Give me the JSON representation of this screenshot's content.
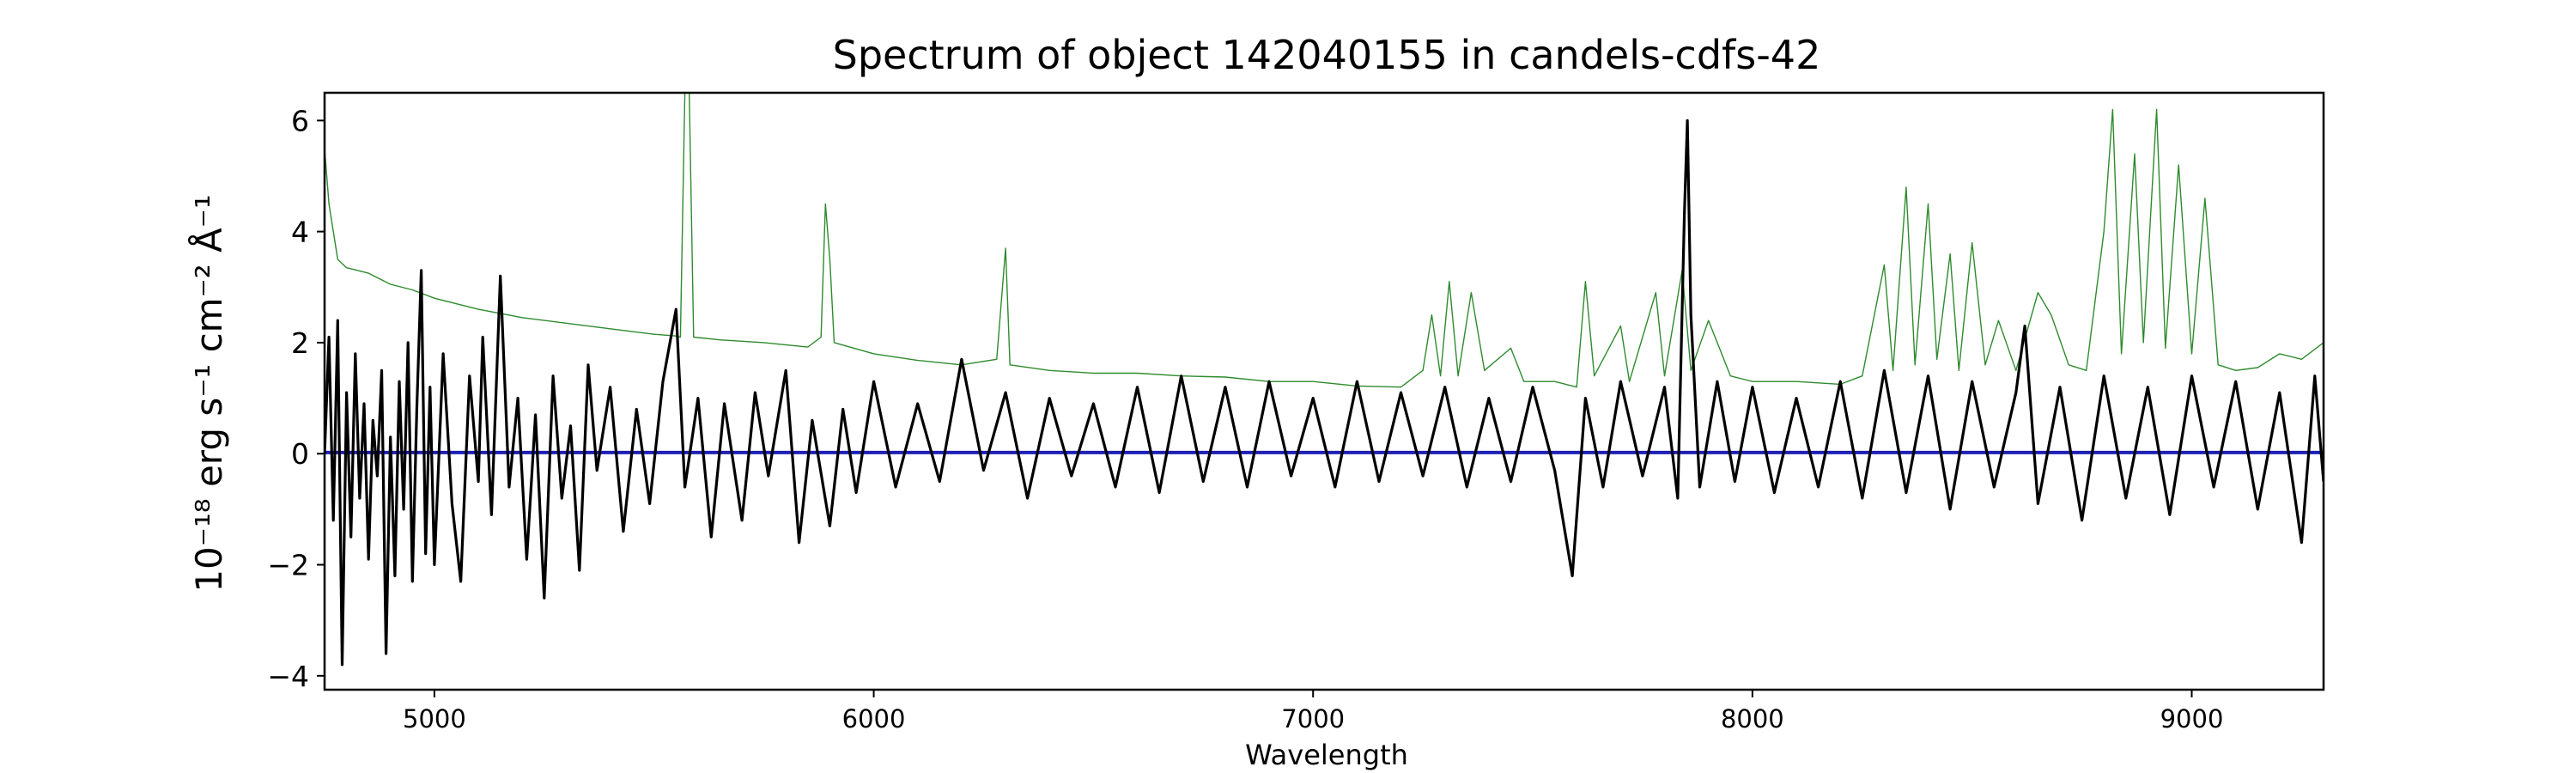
{
  "chart_data": {
    "type": "line",
    "title": "Spectrum of object 142040155 in candels-cdfs-42",
    "xlabel": "Wavelength",
    "ylabel": "10⁻¹⁸ erg s⁻¹ cm⁻² Å⁻¹",
    "xlim": [
      4750,
      9300
    ],
    "ylim": [
      -4.25,
      6.5
    ],
    "xticks": [
      5000,
      6000,
      7000,
      8000,
      9000
    ],
    "yticks": [
      -4,
      -2,
      0,
      2,
      4,
      6
    ],
    "grid": false,
    "series": [
      {
        "role": "flux",
        "color": "#000000",
        "points": [
          [
            4750,
            0.0
          ],
          [
            4760,
            2.1
          ],
          [
            4770,
            -1.2
          ],
          [
            4780,
            2.4
          ],
          [
            4790,
            -3.8
          ],
          [
            4800,
            1.1
          ],
          [
            4810,
            -1.5
          ],
          [
            4820,
            1.8
          ],
          [
            4830,
            -0.8
          ],
          [
            4840,
            0.9
          ],
          [
            4850,
            -1.9
          ],
          [
            4860,
            0.6
          ],
          [
            4870,
            -0.4
          ],
          [
            4880,
            1.5
          ],
          [
            4890,
            -3.6
          ],
          [
            4900,
            0.3
          ],
          [
            4910,
            -2.2
          ],
          [
            4920,
            1.3
          ],
          [
            4930,
            -1.0
          ],
          [
            4940,
            2.0
          ],
          [
            4950,
            -2.3
          ],
          [
            4960,
            0.8
          ],
          [
            4970,
            3.3
          ],
          [
            4980,
            -1.8
          ],
          [
            4990,
            1.2
          ],
          [
            5000,
            -2.0
          ],
          [
            5020,
            1.8
          ],
          [
            5040,
            -0.9
          ],
          [
            5060,
            -2.3
          ],
          [
            5080,
            1.4
          ],
          [
            5100,
            -0.5
          ],
          [
            5110,
            2.1
          ],
          [
            5130,
            -1.1
          ],
          [
            5150,
            3.2
          ],
          [
            5170,
            -0.6
          ],
          [
            5190,
            1.0
          ],
          [
            5210,
            -1.9
          ],
          [
            5230,
            0.7
          ],
          [
            5250,
            -2.6
          ],
          [
            5270,
            1.4
          ],
          [
            5290,
            -0.8
          ],
          [
            5310,
            0.5
          ],
          [
            5330,
            -2.1
          ],
          [
            5350,
            1.6
          ],
          [
            5370,
            -0.3
          ],
          [
            5400,
            1.2
          ],
          [
            5430,
            -1.4
          ],
          [
            5460,
            0.8
          ],
          [
            5490,
            -0.9
          ],
          [
            5520,
            1.3
          ],
          [
            5550,
            2.6
          ],
          [
            5570,
            -0.6
          ],
          [
            5600,
            1.0
          ],
          [
            5630,
            -1.5
          ],
          [
            5660,
            0.9
          ],
          [
            5700,
            -1.2
          ],
          [
            5730,
            1.1
          ],
          [
            5760,
            -0.4
          ],
          [
            5800,
            1.5
          ],
          [
            5830,
            -1.6
          ],
          [
            5860,
            0.6
          ],
          [
            5900,
            -1.3
          ],
          [
            5930,
            0.8
          ],
          [
            5960,
            -0.7
          ],
          [
            6000,
            1.3
          ],
          [
            6050,
            -0.6
          ],
          [
            6100,
            0.9
          ],
          [
            6150,
            -0.5
          ],
          [
            6200,
            1.7
          ],
          [
            6250,
            -0.3
          ],
          [
            6300,
            1.1
          ],
          [
            6350,
            -0.8
          ],
          [
            6400,
            1.0
          ],
          [
            6450,
            -0.4
          ],
          [
            6500,
            0.9
          ],
          [
            6550,
            -0.6
          ],
          [
            6600,
            1.2
          ],
          [
            6650,
            -0.7
          ],
          [
            6700,
            1.4
          ],
          [
            6750,
            -0.5
          ],
          [
            6800,
            1.2
          ],
          [
            6850,
            -0.6
          ],
          [
            6900,
            1.3
          ],
          [
            6950,
            -0.4
          ],
          [
            7000,
            1.0
          ],
          [
            7050,
            -0.6
          ],
          [
            7100,
            1.3
          ],
          [
            7150,
            -0.5
          ],
          [
            7200,
            1.1
          ],
          [
            7250,
            -0.4
          ],
          [
            7300,
            1.2
          ],
          [
            7350,
            -0.6
          ],
          [
            7400,
            1.0
          ],
          [
            7450,
            -0.5
          ],
          [
            7500,
            1.2
          ],
          [
            7550,
            -0.3
          ],
          [
            7590,
            -2.2
          ],
          [
            7620,
            1.0
          ],
          [
            7660,
            -0.6
          ],
          [
            7700,
            1.3
          ],
          [
            7750,
            -0.4
          ],
          [
            7800,
            1.2
          ],
          [
            7830,
            -0.8
          ],
          [
            7845,
            4.3
          ],
          [
            7852,
            6.0
          ],
          [
            7860,
            2.5
          ],
          [
            7880,
            -0.6
          ],
          [
            7920,
            1.3
          ],
          [
            7960,
            -0.5
          ],
          [
            8000,
            1.2
          ],
          [
            8050,
            -0.7
          ],
          [
            8100,
            1.0
          ],
          [
            8150,
            -0.6
          ],
          [
            8200,
            1.3
          ],
          [
            8250,
            -0.8
          ],
          [
            8300,
            1.5
          ],
          [
            8350,
            -0.7
          ],
          [
            8400,
            1.4
          ],
          [
            8450,
            -1.0
          ],
          [
            8500,
            1.3
          ],
          [
            8550,
            -0.6
          ],
          [
            8600,
            1.1
          ],
          [
            8620,
            2.3
          ],
          [
            8650,
            -0.9
          ],
          [
            8700,
            1.2
          ],
          [
            8750,
            -1.2
          ],
          [
            8800,
            1.4
          ],
          [
            8850,
            -0.8
          ],
          [
            8900,
            1.2
          ],
          [
            8950,
            -1.1
          ],
          [
            9000,
            1.4
          ],
          [
            9050,
            -0.6
          ],
          [
            9100,
            1.3
          ],
          [
            9150,
            -1.0
          ],
          [
            9200,
            1.1
          ],
          [
            9250,
            -1.6
          ],
          [
            9280,
            1.4
          ],
          [
            9300,
            -0.5
          ]
        ]
      },
      {
        "role": "noise",
        "color": "#2e8b2e",
        "points": [
          [
            4750,
            5.5
          ],
          [
            4760,
            4.5
          ],
          [
            4780,
            3.5
          ],
          [
            4800,
            3.35
          ],
          [
            4850,
            3.25
          ],
          [
            4900,
            3.05
          ],
          [
            4950,
            2.95
          ],
          [
            5000,
            2.8
          ],
          [
            5100,
            2.6
          ],
          [
            5200,
            2.45
          ],
          [
            5300,
            2.35
          ],
          [
            5400,
            2.25
          ],
          [
            5500,
            2.15
          ],
          [
            5550,
            2.12
          ],
          [
            5560,
            2.1
          ],
          [
            5570,
            6.5
          ],
          [
            5580,
            6.5
          ],
          [
            5590,
            2.1
          ],
          [
            5650,
            2.05
          ],
          [
            5750,
            2.0
          ],
          [
            5850,
            1.92
          ],
          [
            5880,
            2.1
          ],
          [
            5890,
            4.5
          ],
          [
            5900,
            3.5
          ],
          [
            5910,
            2.0
          ],
          [
            6000,
            1.8
          ],
          [
            6100,
            1.68
          ],
          [
            6200,
            1.6
          ],
          [
            6280,
            1.7
          ],
          [
            6300,
            3.7
          ],
          [
            6310,
            1.6
          ],
          [
            6400,
            1.5
          ],
          [
            6500,
            1.45
          ],
          [
            6600,
            1.45
          ],
          [
            6700,
            1.4
          ],
          [
            6800,
            1.38
          ],
          [
            6900,
            1.3
          ],
          [
            7000,
            1.3
          ],
          [
            7100,
            1.22
          ],
          [
            7200,
            1.2
          ],
          [
            7250,
            1.5
          ],
          [
            7270,
            2.5
          ],
          [
            7290,
            1.4
          ],
          [
            7310,
            3.1
          ],
          [
            7330,
            1.4
          ],
          [
            7360,
            2.9
          ],
          [
            7390,
            1.5
          ],
          [
            7450,
            1.9
          ],
          [
            7480,
            1.3
          ],
          [
            7550,
            1.3
          ],
          [
            7600,
            1.2
          ],
          [
            7620,
            3.1
          ],
          [
            7640,
            1.4
          ],
          [
            7700,
            2.3
          ],
          [
            7720,
            1.3
          ],
          [
            7780,
            2.9
          ],
          [
            7800,
            1.4
          ],
          [
            7840,
            3.3
          ],
          [
            7860,
            1.5
          ],
          [
            7900,
            2.4
          ],
          [
            7950,
            1.4
          ],
          [
            8000,
            1.3
          ],
          [
            8100,
            1.3
          ],
          [
            8200,
            1.25
          ],
          [
            8250,
            1.4
          ],
          [
            8300,
            3.4
          ],
          [
            8320,
            1.5
          ],
          [
            8350,
            4.8
          ],
          [
            8370,
            1.6
          ],
          [
            8400,
            4.5
          ],
          [
            8420,
            1.7
          ],
          [
            8450,
            3.6
          ],
          [
            8470,
            1.5
          ],
          [
            8500,
            3.8
          ],
          [
            8530,
            1.6
          ],
          [
            8560,
            2.4
          ],
          [
            8600,
            1.5
          ],
          [
            8650,
            2.9
          ],
          [
            8680,
            2.5
          ],
          [
            8720,
            1.6
          ],
          [
            8760,
            1.5
          ],
          [
            8800,
            4.0
          ],
          [
            8820,
            6.2
          ],
          [
            8840,
            1.8
          ],
          [
            8870,
            5.4
          ],
          [
            8890,
            2.0
          ],
          [
            8920,
            6.2
          ],
          [
            8940,
            1.9
          ],
          [
            8970,
            5.2
          ],
          [
            9000,
            1.8
          ],
          [
            9030,
            4.6
          ],
          [
            9060,
            1.6
          ],
          [
            9100,
            1.5
          ],
          [
            9150,
            1.55
          ],
          [
            9200,
            1.8
          ],
          [
            9250,
            1.7
          ],
          [
            9300,
            2.0
          ]
        ]
      },
      {
        "role": "model",
        "color": "#1f1fb4",
        "points": [
          [
            4750,
            0.02
          ],
          [
            9300,
            0.02
          ]
        ]
      }
    ]
  }
}
